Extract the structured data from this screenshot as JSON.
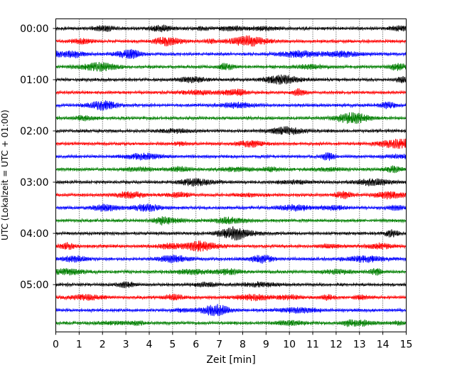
{
  "chart_data": {
    "type": "line",
    "xlabel": "Zeit  [min]",
    "ylabel": "UTC (Lokalzeit = UTC + 01:00)",
    "xlim": [
      0,
      15
    ],
    "x_ticks": [
      "0",
      "1",
      "2",
      "3",
      "4",
      "5",
      "6",
      "7",
      "8",
      "9",
      "10",
      "11",
      "12",
      "13",
      "14",
      "15"
    ],
    "y_tick_labels": [
      "00:00",
      "01:00",
      "02:00",
      "03:00",
      "04:00",
      "05:00"
    ],
    "traces_per_hour": 4,
    "trace_count": 24,
    "trace_colors": [
      "#000000",
      "#ff0000",
      "#0000ff",
      "#007f00"
    ],
    "vertical_grid": "dotted",
    "start_utc": "00:00",
    "trace_minutes": 15
  }
}
